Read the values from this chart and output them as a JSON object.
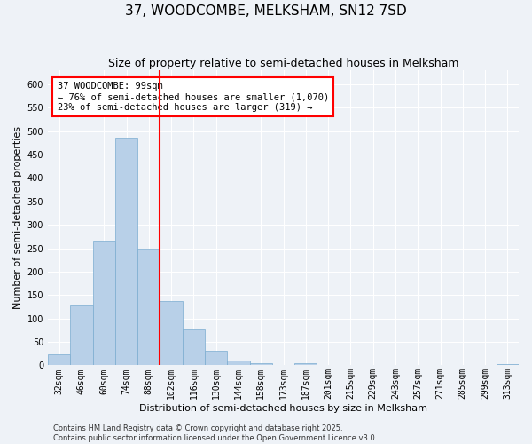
{
  "title": "37, WOODCOMBE, MELKSHAM, SN12 7SD",
  "subtitle": "Size of property relative to semi-detached houses in Melksham",
  "xlabel": "Distribution of semi-detached houses by size in Melksham",
  "ylabel": "Number of semi-detached properties",
  "bins": [
    "32sqm",
    "46sqm",
    "60sqm",
    "74sqm",
    "88sqm",
    "102sqm",
    "116sqm",
    "130sqm",
    "144sqm",
    "158sqm",
    "173sqm",
    "187sqm",
    "201sqm",
    "215sqm",
    "229sqm",
    "243sqm",
    "257sqm",
    "271sqm",
    "285sqm",
    "299sqm",
    "313sqm"
  ],
  "values": [
    23,
    128,
    267,
    487,
    250,
    137,
    77,
    32,
    10,
    4,
    0,
    5,
    0,
    0,
    0,
    0,
    0,
    0,
    0,
    0,
    2
  ],
  "bar_color": "#b8d0e8",
  "bar_edge_color": "#7aacd0",
  "property_line_x": 4.5,
  "annotation_text_line1": "37 WOODCOMBE: 99sqm",
  "annotation_text_line2": "← 76% of semi-detached houses are smaller (1,070)",
  "annotation_text_line3": "23% of semi-detached houses are larger (319) →",
  "ylim": [
    0,
    630
  ],
  "yticks": [
    0,
    50,
    100,
    150,
    200,
    250,
    300,
    350,
    400,
    450,
    500,
    550,
    600
  ],
  "footer_line1": "Contains HM Land Registry data © Crown copyright and database right 2025.",
  "footer_line2": "Contains public sector information licensed under the Open Government Licence v3.0.",
  "background_color": "#eef2f7",
  "grid_color": "#ffffff",
  "title_fontsize": 11,
  "subtitle_fontsize": 9,
  "label_fontsize": 8,
  "tick_fontsize": 7,
  "footer_fontsize": 6,
  "annotation_fontsize": 7.5
}
